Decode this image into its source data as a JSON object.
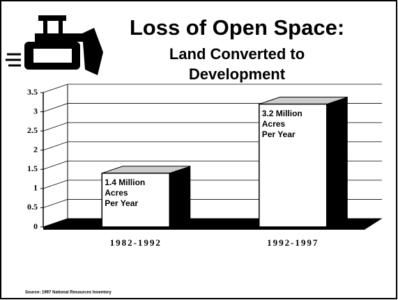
{
  "chart_data": {
    "type": "bar3d",
    "title": "Loss of Open Space:",
    "subtitle": [
      "Land Converted to",
      "Development"
    ],
    "categories": [
      "1982-1992",
      "1992-1997"
    ],
    "values": [
      1.4,
      3.2
    ],
    "value_labels": [
      "1.4 Million\nAcres\nPer Year",
      "3.2 Million\nAcres\nPer Year"
    ],
    "color": "#ffffff",
    "ylim": [
      0,
      3.5
    ],
    "yticks": [
      0,
      0.5,
      1,
      1.5,
      2,
      2.5,
      3,
      3.5
    ],
    "grid": true,
    "source": "Source: 1997 National Resources Inventory"
  }
}
